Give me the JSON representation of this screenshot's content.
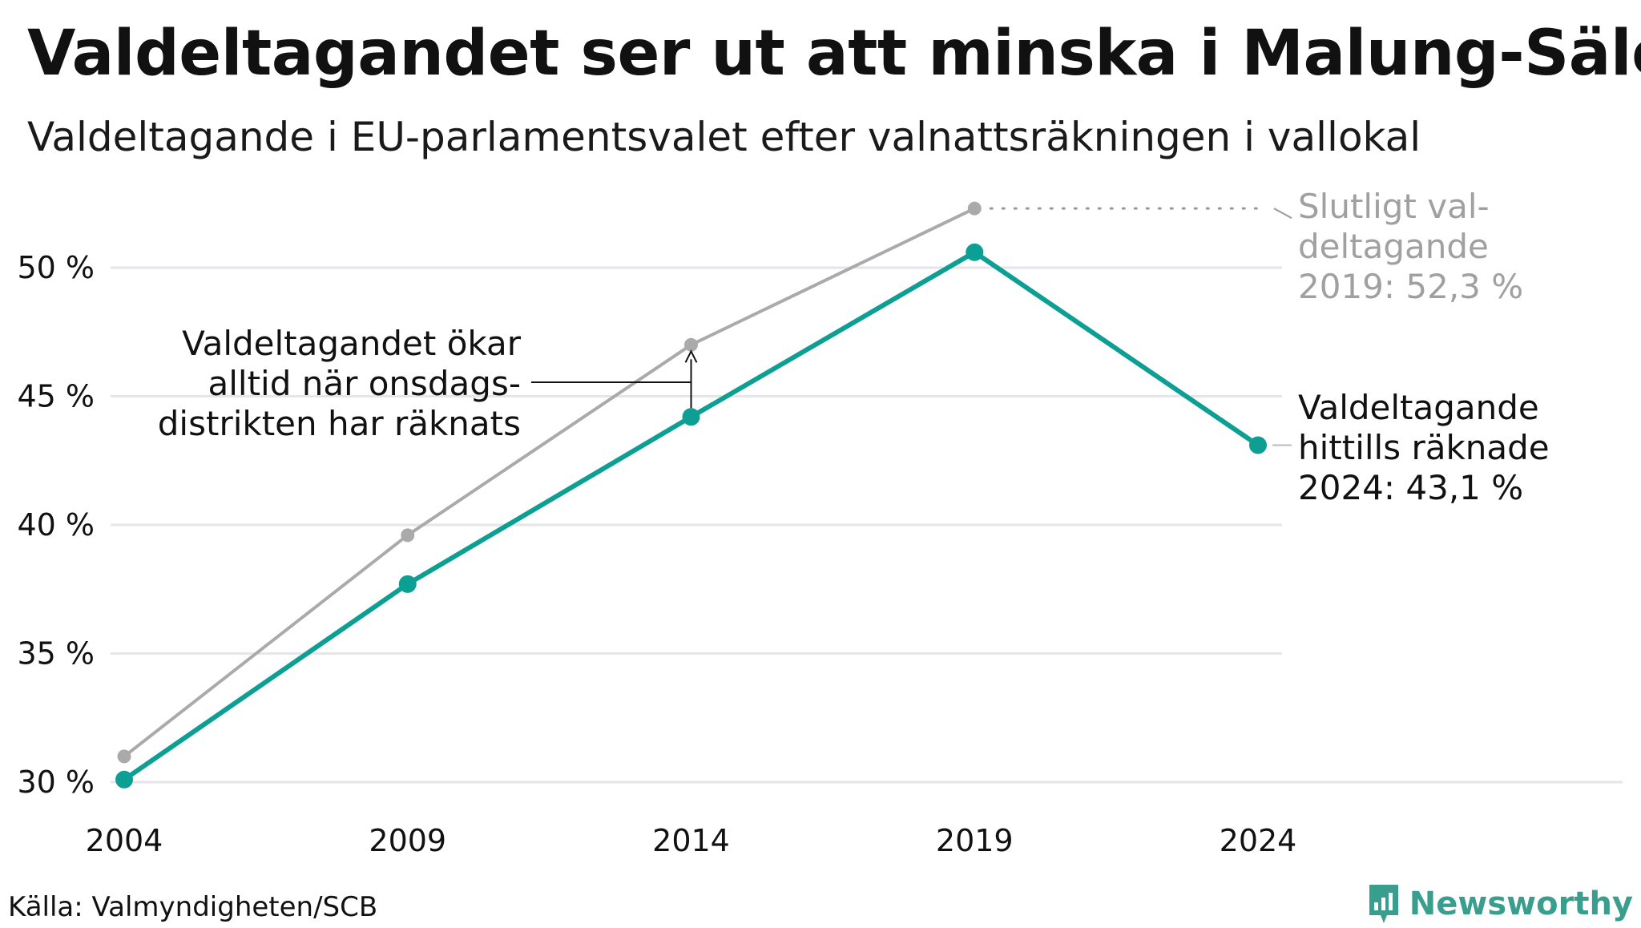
{
  "title": "Valdeltagandet ser ut att minska i Malung-Sälen",
  "subtitle": "Valdeltagande i EU-parlamentsvalet efter valnattsräkningen i vallokal",
  "source": "Källa: Valmyndigheten/SCB",
  "logo_text": "Newsworthy",
  "colors": {
    "counted": "#0e9f94",
    "final": "#aaaaaa",
    "grid": "#e6e6ea",
    "text": "#111111"
  },
  "chart_data": {
    "type": "line",
    "x": [
      2004,
      2009,
      2014,
      2019,
      2024
    ],
    "x_tick_labels": [
      "2004",
      "2009",
      "2014",
      "2019",
      "2024"
    ],
    "y_ticks": [
      30,
      35,
      40,
      45,
      50
    ],
    "y_tick_labels": [
      "30 %",
      "35 %",
      "40 %",
      "45 %",
      "50 %"
    ],
    "ylim": [
      30,
      52.3
    ],
    "grid": true,
    "series": [
      {
        "key": "final",
        "values": [
          31.0,
          39.6,
          47.0,
          52.3,
          null
        ]
      },
      {
        "key": "counted",
        "values": [
          30.1,
          37.7,
          44.2,
          50.6,
          43.1
        ]
      }
    ],
    "annotations": {
      "final": [
        "Slutligt val-",
        "deltagande",
        "2019: 52,3 %"
      ],
      "counted": [
        "Valdeltagande",
        "hittills räknade",
        "2024: 43,1 %"
      ],
      "gap": [
        "Valdeltagandet ökar",
        "alltid när onsdags-",
        "distrikten har räknats"
      ]
    }
  }
}
